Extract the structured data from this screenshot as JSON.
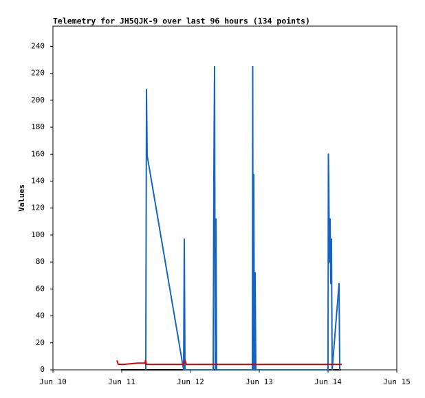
{
  "chart_data": {
    "type": "line",
    "title": "Telemetry for JH5QJK-9 over last 96 hours (134 points)",
    "y_label": "Values",
    "xlim": [
      10,
      15
    ],
    "xticks": [
      {
        "value": 10,
        "label": "Jun 10"
      },
      {
        "value": 11,
        "label": "Jun 11"
      },
      {
        "value": 12,
        "label": "Jun 12"
      },
      {
        "value": 13,
        "label": "Jun 13"
      },
      {
        "value": 14,
        "label": "Jun 14"
      },
      {
        "value": 15,
        "label": "Jun 15"
      }
    ],
    "ylim": [
      0,
      255
    ],
    "yticks": [
      0,
      20,
      40,
      60,
      80,
      100,
      120,
      140,
      160,
      180,
      200,
      220,
      240
    ],
    "series": [
      {
        "color": "#000000",
        "x": [
          10.99,
          14.19
        ],
        "values": [
          0,
          0
        ]
      },
      {
        "color": "#1565c0",
        "x": [
          11.35,
          11.355,
          11.36,
          11.37,
          11.9,
          11.91,
          11.92,
          12.33,
          12.34,
          12.35,
          12.36,
          12.37,
          12.38,
          12.9,
          12.905,
          12.91,
          12.92,
          12.93,
          12.94,
          12.95,
          14.0,
          14.005,
          14.01,
          14.02,
          14.03,
          14.04,
          14.05,
          14.06,
          14.16,
          14.17
        ],
        "values": [
          0,
          104,
          208,
          159,
          0,
          97,
          0,
          0,
          145,
          225,
          0,
          112,
          0,
          0,
          225,
          0,
          145,
          0,
          72,
          0,
          0,
          160,
          144,
          80,
          112,
          64,
          97,
          0,
          64,
          0
        ]
      },
      {
        "color": "#e00000",
        "x": [
          10.93,
          10.95,
          11.03,
          11.23,
          11.34,
          11.345,
          11.36,
          11.9,
          11.92,
          11.94,
          14.2
        ],
        "values": [
          7,
          4,
          4,
          5,
          5,
          7,
          4,
          4,
          7,
          4,
          4
        ]
      }
    ]
  }
}
